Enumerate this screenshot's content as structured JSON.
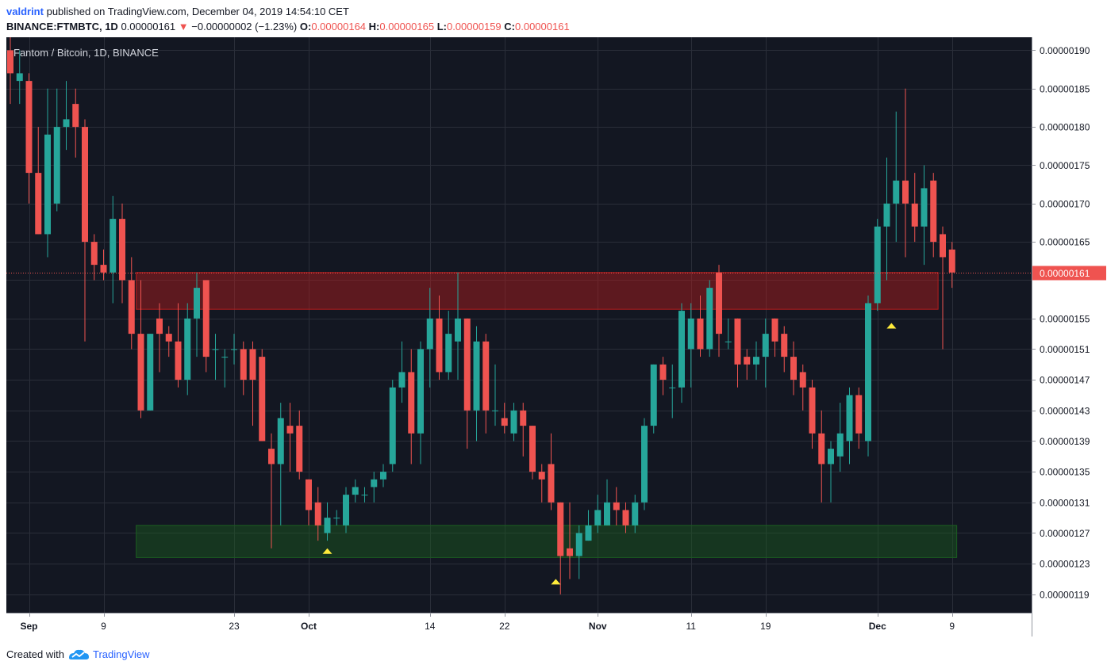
{
  "header": {
    "user": "valdrint",
    "published": "published on TradingView.com, December 04, 2019 14:54:10 CET",
    "symbol": "BINANCE:FTMBTC, 1D",
    "last": "0.00000161",
    "change": "−0.00000002 (−1.23%)",
    "o_label": "O:",
    "o": "0.00000164",
    "h_label": "H:",
    "h": "0.00000165",
    "l_label": "L:",
    "l": "0.00000159",
    "c_label": "C:",
    "c": "0.00000161"
  },
  "footer": {
    "created": "Created with",
    "brand": "TradingView"
  },
  "chart_data": {
    "type": "candlestick",
    "title": "Fantom / Bitcoin, 1D, BINANCE",
    "current_price": 1.61e-06,
    "current_price_label": "0.00000161",
    "ylim": [
      1.166e-06,
      1.917e-06
    ],
    "y_ticks": [
      {
        "v": 1.9e-06,
        "label": "0.00000190"
      },
      {
        "v": 1.85e-06,
        "label": "0.00000185"
      },
      {
        "v": 1.8e-06,
        "label": "0.00000180"
      },
      {
        "v": 1.75e-06,
        "label": "0.00000175"
      },
      {
        "v": 1.7e-06,
        "label": "0.00000170"
      },
      {
        "v": 1.65e-06,
        "label": "0.00000165"
      },
      {
        "v": 1.6e-06,
        "label": "0.00000160"
      },
      {
        "v": 1.55e-06,
        "label": "0.00000155"
      },
      {
        "v": 1.51e-06,
        "label": "0.00000151"
      },
      {
        "v": 1.47e-06,
        "label": "0.00000147"
      },
      {
        "v": 1.43e-06,
        "label": "0.00000143"
      },
      {
        "v": 1.39e-06,
        "label": "0.00000139"
      },
      {
        "v": 1.35e-06,
        "label": "0.00000135"
      },
      {
        "v": 1.31e-06,
        "label": "0.00000131"
      },
      {
        "v": 1.27e-06,
        "label": "0.00000127"
      },
      {
        "v": 1.23e-06,
        "label": "0.00000123"
      },
      {
        "v": 1.19e-06,
        "label": "0.00000119"
      }
    ],
    "x_ticks": [
      {
        "i": 2,
        "label": "Sep",
        "bold": true
      },
      {
        "i": 10,
        "label": "9",
        "bold": false
      },
      {
        "i": 24,
        "label": "23",
        "bold": false
      },
      {
        "i": 32,
        "label": "Oct",
        "bold": true
      },
      {
        "i": 45,
        "label": "14",
        "bold": false
      },
      {
        "i": 53,
        "label": "22",
        "bold": false
      },
      {
        "i": 63,
        "label": "Nov",
        "bold": true
      },
      {
        "i": 73,
        "label": "11",
        "bold": false
      },
      {
        "i": 81,
        "label": "19",
        "bold": false
      },
      {
        "i": 93,
        "label": "Dec",
        "bold": true
      },
      {
        "i": 101,
        "label": "9",
        "bold": false
      }
    ],
    "zones": [
      {
        "name": "resistance",
        "i_start": 13.5,
        "i_end": 99.5,
        "top": 1.61e-06,
        "bottom": 1.562e-06,
        "color": "#b71c1c"
      },
      {
        "name": "support",
        "i_start": 13.5,
        "i_end": 101.5,
        "top": 1.28e-06,
        "bottom": 1.238e-06,
        "color": "#1b5e20"
      }
    ],
    "markers": [
      {
        "i": 34,
        "price": 1.248e-06
      },
      {
        "i": 58.5,
        "price": 1.208e-06
      },
      {
        "i": 94.5,
        "price": 1.542e-06
      }
    ],
    "bull_color": "#26a69a",
    "bear_color": "#ef5350",
    "candles": [
      [
        1.9e-06,
        1.95e-06,
        1.83e-06,
        1.87e-06
      ],
      [
        1.86e-06,
        1.9e-06,
        1.83e-06,
        1.87e-06
      ],
      [
        1.86e-06,
        1.87e-06,
        1.7e-06,
        1.74e-06
      ],
      [
        1.74e-06,
        1.8e-06,
        1.66e-06,
        1.66e-06
      ],
      [
        1.66e-06,
        1.85e-06,
        1.63e-06,
        1.79e-06
      ],
      [
        1.7e-06,
        1.85e-06,
        1.69e-06,
        1.8e-06
      ],
      [
        1.8e-06,
        1.86e-06,
        1.77e-06,
        1.81e-06
      ],
      [
        1.83e-06,
        1.85e-06,
        1.76e-06,
        1.8e-06
      ],
      [
        1.8e-06,
        1.81e-06,
        1.52e-06,
        1.65e-06
      ],
      [
        1.65e-06,
        1.66e-06,
        1.6e-06,
        1.62e-06
      ],
      [
        1.62e-06,
        1.64e-06,
        1.6e-06,
        1.61e-06
      ],
      [
        1.61e-06,
        1.71e-06,
        1.57e-06,
        1.68e-06
      ],
      [
        1.68e-06,
        1.7e-06,
        1.57e-06,
        1.6e-06
      ],
      [
        1.6e-06,
        1.63e-06,
        1.51e-06,
        1.53e-06
      ],
      [
        1.53e-06,
        1.6e-06,
        1.42e-06,
        1.43e-06
      ],
      [
        1.43e-06,
        1.53e-06,
        1.43e-06,
        1.53e-06
      ],
      [
        1.55e-06,
        1.57e-06,
        1.48e-06,
        1.53e-06
      ],
      [
        1.53e-06,
        1.54e-06,
        1.5e-06,
        1.52e-06
      ],
      [
        1.52e-06,
        1.57e-06,
        1.46e-06,
        1.47e-06
      ],
      [
        1.47e-06,
        1.57e-06,
        1.45e-06,
        1.55e-06
      ],
      [
        1.55e-06,
        1.61e-06,
        1.5e-06,
        1.59e-06
      ],
      [
        1.6e-06,
        1.6e-06,
        1.48e-06,
        1.5e-06
      ],
      [
        1.51e-06,
        1.53e-06,
        1.47e-06,
        1.51e-06
      ],
      [
        1.5e-06,
        1.51e-06,
        1.46e-06,
        1.5e-06
      ],
      [
        1.51e-06,
        1.53e-06,
        1.49e-06,
        1.51e-06
      ],
      [
        1.51e-06,
        1.52e-06,
        1.45e-06,
        1.47e-06
      ],
      [
        1.51e-06,
        1.52e-06,
        1.41e-06,
        1.47e-06
      ],
      [
        1.5e-06,
        1.51e-06,
        1.39e-06,
        1.39e-06
      ],
      [
        1.38e-06,
        1.4e-06,
        1.25e-06,
        1.36e-06
      ],
      [
        1.36e-06,
        1.44e-06,
        1.28e-06,
        1.42e-06
      ],
      [
        1.41e-06,
        1.44e-06,
        1.35e-06,
        1.4e-06
      ],
      [
        1.41e-06,
        1.43e-06,
        1.34e-06,
        1.35e-06
      ],
      [
        1.34e-06,
        1.34e-06,
        1.28e-06,
        1.3e-06
      ],
      [
        1.31e-06,
        1.33e-06,
        1.26e-06,
        1.28e-06
      ],
      [
        1.27e-06,
        1.31e-06,
        1.26e-06,
        1.29e-06
      ],
      [
        1.29e-06,
        1.3e-06,
        1.28e-06,
        1.29e-06
      ],
      [
        1.28e-06,
        1.33e-06,
        1.27e-06,
        1.32e-06
      ],
      [
        1.32e-06,
        1.34e-06,
        1.31e-06,
        1.33e-06
      ],
      [
        1.32e-06,
        1.33e-06,
        1.31e-06,
        1.32e-06
      ],
      [
        1.33e-06,
        1.35e-06,
        1.31e-06,
        1.34e-06
      ],
      [
        1.34e-06,
        1.36e-06,
        1.33e-06,
        1.35e-06
      ],
      [
        1.36e-06,
        1.47e-06,
        1.35e-06,
        1.46e-06
      ],
      [
        1.46e-06,
        1.52e-06,
        1.44e-06,
        1.48e-06
      ],
      [
        1.48e-06,
        1.51e-06,
        1.36e-06,
        1.4e-06
      ],
      [
        1.4e-06,
        1.52e-06,
        1.36e-06,
        1.51e-06
      ],
      [
        1.51e-06,
        1.59e-06,
        1.46e-06,
        1.55e-06
      ],
      [
        1.55e-06,
        1.58e-06,
        1.47e-06,
        1.48e-06
      ],
      [
        1.48e-06,
        1.56e-06,
        1.47e-06,
        1.53e-06
      ],
      [
        1.52e-06,
        1.61e-06,
        1.47e-06,
        1.55e-06
      ],
      [
        1.55e-06,
        1.55e-06,
        1.38e-06,
        1.43e-06
      ],
      [
        1.43e-06,
        1.54e-06,
        1.39e-06,
        1.52e-06
      ],
      [
        1.52e-06,
        1.53e-06,
        1.4e-06,
        1.43e-06
      ],
      [
        1.43e-06,
        1.49e-06,
        1.41e-06,
        1.43e-06
      ],
      [
        1.42e-06,
        1.44e-06,
        1.4e-06,
        1.41e-06
      ],
      [
        1.4e-06,
        1.44e-06,
        1.39e-06,
        1.43e-06
      ],
      [
        1.43e-06,
        1.44e-06,
        1.37e-06,
        1.41e-06
      ],
      [
        1.41e-06,
        1.41e-06,
        1.34e-06,
        1.35e-06
      ],
      [
        1.35e-06,
        1.36e-06,
        1.31e-06,
        1.34e-06
      ],
      [
        1.36e-06,
        1.4e-06,
        1.3e-06,
        1.31e-06
      ],
      [
        1.31e-06,
        1.31e-06,
        1.19e-06,
        1.24e-06
      ],
      [
        1.25e-06,
        1.31e-06,
        1.21e-06,
        1.24e-06
      ],
      [
        1.24e-06,
        1.28e-06,
        1.21e-06,
        1.27e-06
      ],
      [
        1.26e-06,
        1.3e-06,
        1.26e-06,
        1.28e-06
      ],
      [
        1.28e-06,
        1.32e-06,
        1.27e-06,
        1.3e-06
      ],
      [
        1.28e-06,
        1.34e-06,
        1.28e-06,
        1.31e-06
      ],
      [
        1.31e-06,
        1.33e-06,
        1.28e-06,
        1.3e-06
      ],
      [
        1.3e-06,
        1.31e-06,
        1.27e-06,
        1.28e-06
      ],
      [
        1.28e-06,
        1.32e-06,
        1.27e-06,
        1.31e-06
      ],
      [
        1.31e-06,
        1.42e-06,
        1.3e-06,
        1.41e-06
      ],
      [
        1.41e-06,
        1.49e-06,
        1.4e-06,
        1.49e-06
      ],
      [
        1.49e-06,
        1.5e-06,
        1.45e-06,
        1.47e-06
      ],
      [
        1.46e-06,
        1.49e-06,
        1.42e-06,
        1.46e-06
      ],
      [
        1.46e-06,
        1.57e-06,
        1.44e-06,
        1.56e-06
      ],
      [
        1.51e-06,
        1.57e-06,
        1.46e-06,
        1.55e-06
      ],
      [
        1.55e-06,
        1.58e-06,
        1.5e-06,
        1.51e-06
      ],
      [
        1.51e-06,
        1.6e-06,
        1.5e-06,
        1.59e-06
      ],
      [
        1.61e-06,
        1.62e-06,
        1.5e-06,
        1.53e-06
      ],
      [
        1.52e-06,
        1.55e-06,
        1.51e-06,
        1.52e-06
      ],
      [
        1.55e-06,
        1.55e-06,
        1.46e-06,
        1.49e-06
      ],
      [
        1.5e-06,
        1.51e-06,
        1.47e-06,
        1.49e-06
      ],
      [
        1.49e-06,
        1.52e-06,
        1.47e-06,
        1.5e-06
      ],
      [
        1.5e-06,
        1.55e-06,
        1.46e-06,
        1.53e-06
      ],
      [
        1.55e-06,
        1.55e-06,
        1.5e-06,
        1.52e-06
      ],
      [
        1.53e-06,
        1.54e-06,
        1.48e-06,
        1.5e-06
      ],
      [
        1.5e-06,
        1.52e-06,
        1.45e-06,
        1.47e-06
      ],
      [
        1.48e-06,
        1.49e-06,
        1.43e-06,
        1.46e-06
      ],
      [
        1.46e-06,
        1.47e-06,
        1.38e-06,
        1.4e-06
      ],
      [
        1.4e-06,
        1.43e-06,
        1.31e-06,
        1.36e-06
      ],
      [
        1.36e-06,
        1.39e-06,
        1.31e-06,
        1.38e-06
      ],
      [
        1.37e-06,
        1.44e-06,
        1.35e-06,
        1.4e-06
      ],
      [
        1.39e-06,
        1.46e-06,
        1.36e-06,
        1.45e-06
      ],
      [
        1.45e-06,
        1.46e-06,
        1.38e-06,
        1.4e-06
      ],
      [
        1.39e-06,
        1.58e-06,
        1.37e-06,
        1.57e-06
      ],
      [
        1.57e-06,
        1.68e-06,
        1.56e-06,
        1.67e-06
      ],
      [
        1.67e-06,
        1.76e-06,
        1.6e-06,
        1.7e-06
      ],
      [
        1.7e-06,
        1.82e-06,
        1.65e-06,
        1.73e-06
      ],
      [
        1.73e-06,
        1.85e-06,
        1.63e-06,
        1.7e-06
      ],
      [
        1.7e-06,
        1.74e-06,
        1.65e-06,
        1.67e-06
      ],
      [
        1.67e-06,
        1.75e-06,
        1.62e-06,
        1.72e-06
      ],
      [
        1.73e-06,
        1.74e-06,
        1.63e-06,
        1.65e-06
      ],
      [
        1.66e-06,
        1.67e-06,
        1.51e-06,
        1.63e-06
      ],
      [
        1.64e-06,
        1.65e-06,
        1.59e-06,
        1.61e-06
      ]
    ]
  }
}
